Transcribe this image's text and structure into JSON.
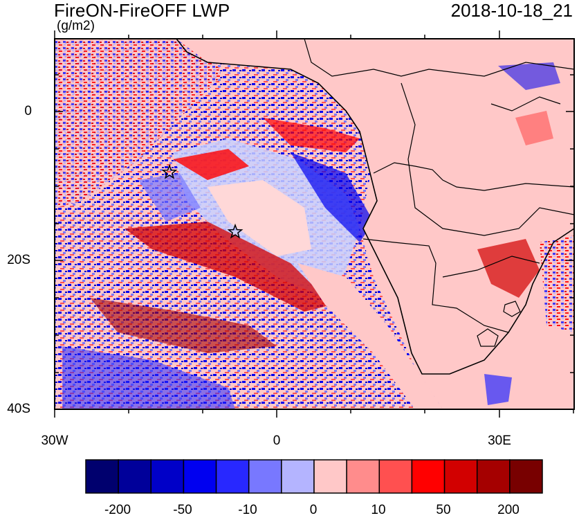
{
  "header": {
    "title": "FireON-FireOFF LWP",
    "units": "(g/m2)",
    "datetime": "2018-10-18_21"
  },
  "axes": {
    "y_labels": [
      "0",
      "20S",
      "40S"
    ],
    "x_labels": [
      "30W",
      "0",
      "30E"
    ]
  },
  "colorbar": {
    "labels": [
      "-200",
      "-50",
      "-10",
      "0",
      "10",
      "50",
      "200"
    ],
    "colors": [
      "#00006e",
      "#00009a",
      "#0000c8",
      "#0000f0",
      "#2828ff",
      "#7878ff",
      "#b4b4ff",
      "#ffc8c8",
      "#ff8c8c",
      "#ff5050",
      "#ff0000",
      "#d20000",
      "#a50000",
      "#780000"
    ]
  },
  "map_colors": {
    "background": "#ffc8c8",
    "coast": "#000000"
  },
  "markers": [
    {
      "name": "star-marker-1"
    },
    {
      "name": "star-marker-2"
    }
  ]
}
